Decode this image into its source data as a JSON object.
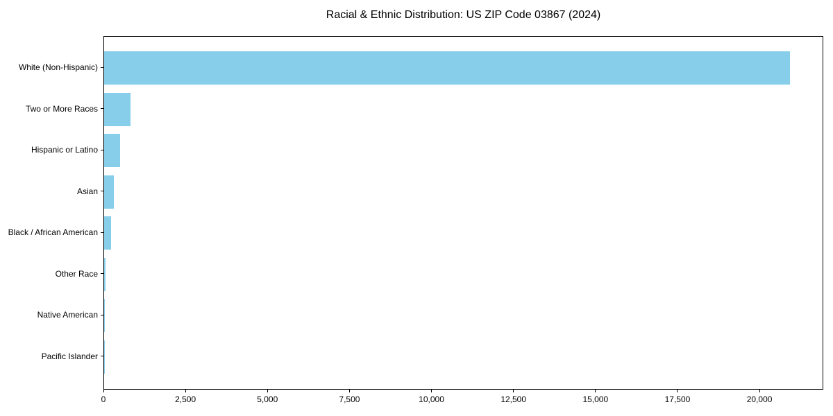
{
  "chart_data": {
    "type": "bar",
    "orientation": "horizontal",
    "title": "Racial & Ethnic Distribution: US ZIP Code 03867 (2024)",
    "categories": [
      "White (Non-Hispanic)",
      "Two or More Races",
      "Hispanic or Latino",
      "Asian",
      "Black / African American",
      "Other Race",
      "Native American",
      "Pacific Islander"
    ],
    "values": [
      20900,
      800,
      480,
      300,
      210,
      40,
      15,
      5
    ],
    "xlabel": "",
    "ylabel": "",
    "xlim": [
      0,
      21945
    ],
    "xticks": [
      0,
      2500,
      5000,
      7500,
      10000,
      12500,
      15000,
      17500,
      20000
    ],
    "xtick_labels": [
      "0",
      "2,500",
      "5,000",
      "7,500",
      "10,000",
      "12,500",
      "15,000",
      "17,500",
      "20,000"
    ],
    "grid": false,
    "legend": null,
    "colors": {
      "bar": "#87CEEB",
      "text": "#000000",
      "spine": "#000000",
      "background": "#FFFFFF"
    }
  }
}
